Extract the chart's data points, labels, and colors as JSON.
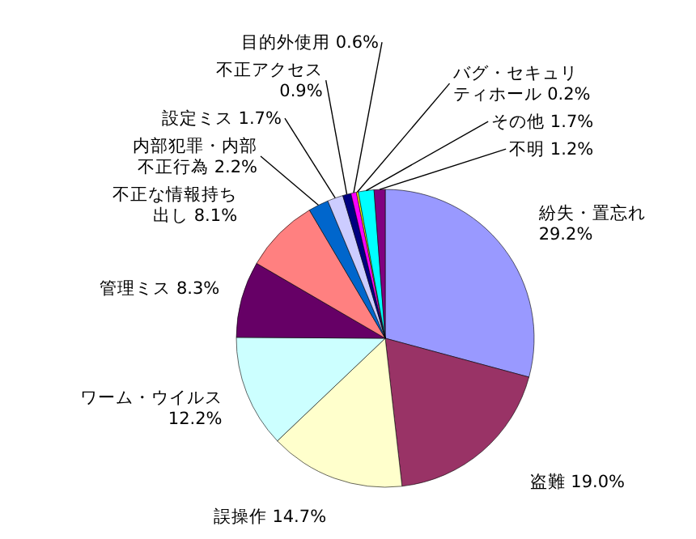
{
  "chart_data": {
    "type": "pie",
    "categories": [
      "紛失・置忘れ",
      "盗難",
      "誤操作",
      "ワーム・ウイルス",
      "管理ミス",
      "不正な情報持ち出し",
      "内部犯罪・内部不正行為",
      "設定ミス",
      "不正アクセス",
      "目的外使用",
      "バグ・セキュリティホール",
      "その他",
      "不明"
    ],
    "values": [
      29.2,
      19.0,
      14.7,
      12.2,
      8.3,
      8.1,
      2.2,
      1.7,
      0.9,
      0.6,
      0.2,
      1.7,
      1.2
    ],
    "value_labels": [
      "29.2%",
      "19.0%",
      "14.7%",
      "12.2%",
      "8.3%",
      "8.1%",
      "2.2%",
      "1.7%",
      "0.9%",
      "0.6%",
      "0.2%",
      "1.7%",
      "1.2%"
    ],
    "colors": [
      "#9999ff",
      "#993366",
      "#ffffcc",
      "#ccffff",
      "#660066",
      "#ff8080",
      "#0066cc",
      "#ccccff",
      "#000080",
      "#ff00ff",
      "#ffff00",
      "#00ffff",
      "#800080"
    ]
  }
}
